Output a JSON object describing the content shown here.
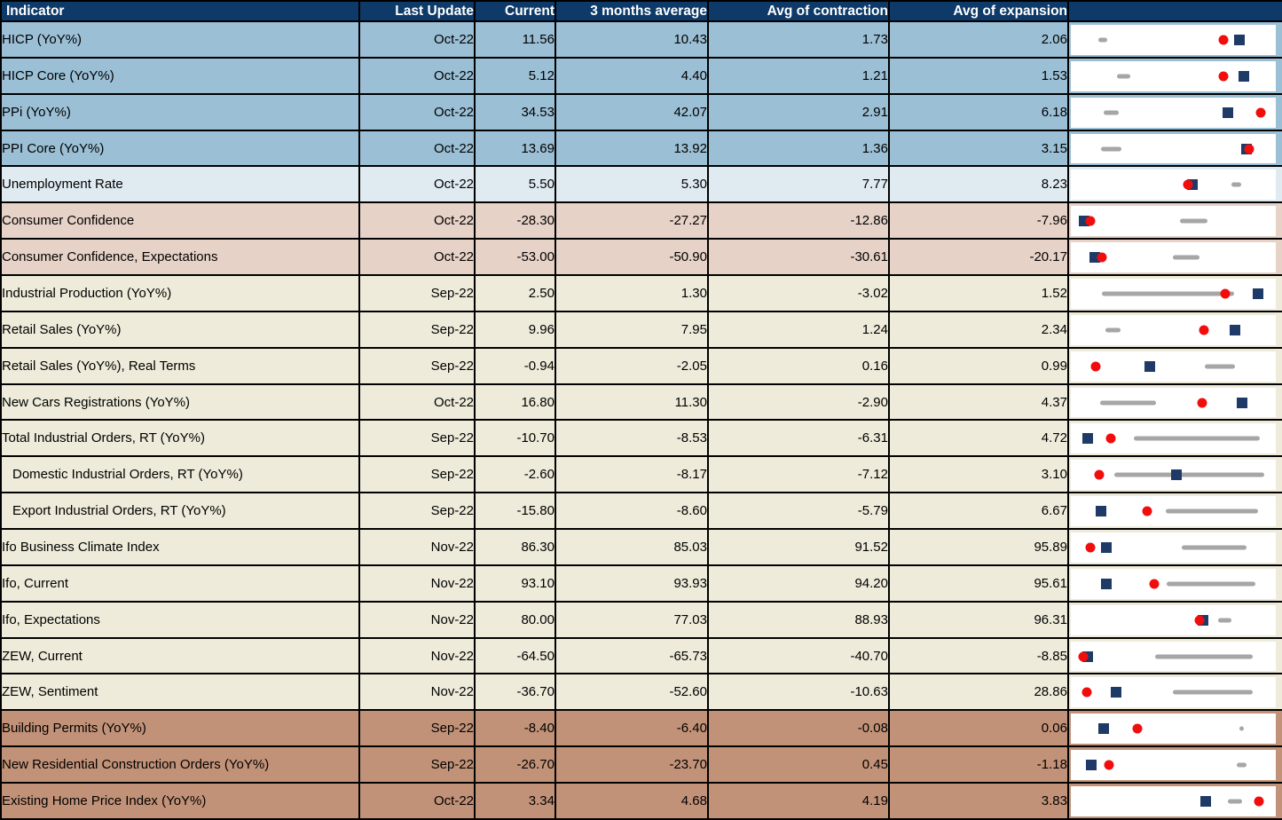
{
  "table": {
    "columns": [
      {
        "key": "indicator",
        "label": "Indicator"
      },
      {
        "key": "last_update",
        "label": "Last Update"
      },
      {
        "key": "current",
        "label": "Current"
      },
      {
        "key": "avg_3m",
        "label": "3 months average"
      },
      {
        "key": "avg_contraction",
        "label": "Avg of contraction"
      },
      {
        "key": "avg_expansion",
        "label": "Avg of expansion"
      },
      {
        "key": "chart",
        "label": ""
      }
    ]
  },
  "colors": {
    "header_bg": "#0D3A68",
    "header_text": "#FFFFFF",
    "grid_line": "#000000",
    "plot_bg": "#FFFFFF",
    "current_dot": "#F20D0D",
    "avg3m_square": "#1E3A66",
    "range_line": "#A6A6A6",
    "row_groups": {
      "inflation": "#9BBFD5",
      "labor": "#E0EAF1",
      "confidence": "#E6D2C7",
      "activity": "#EEEBDA",
      "housing": "#C29278"
    }
  },
  "chart_data": {
    "type": "table",
    "title": "Economic indicators vs contraction/expansion averages",
    "marker_semantics": {
      "current_dot": "red circle marker per row",
      "avg3m_square": "navy square marker per row",
      "range_line": "gray rounded segment per row"
    },
    "rows": [
      {
        "indicator": "HICP (YoY%)",
        "group": "inflation",
        "indent": false,
        "last_update": "Oct-22",
        "current": "11.56",
        "avg_3m": "10.43",
        "avg_contraction": "1.73",
        "avg_expansion": "2.06",
        "chart": {
          "range_line_pct": [
            13.4,
            17.7
          ],
          "avg3m_square_pct": 82.2,
          "current_dot_pct": 74.5
        }
      },
      {
        "indicator": "HICP Core (YoY%)",
        "group": "inflation",
        "indent": false,
        "last_update": "Oct-22",
        "current": "5.12",
        "avg_3m": "4.40",
        "avg_contraction": "1.21",
        "avg_expansion": "1.53",
        "chart": {
          "range_line_pct": [
            22.5,
            29.0
          ],
          "avg3m_square_pct": 84.4,
          "current_dot_pct": 74.5
        }
      },
      {
        "indicator": "PPi (YoY%)",
        "group": "inflation",
        "indent": false,
        "last_update": "Oct-22",
        "current": "34.53",
        "avg_3m": "42.07",
        "avg_contraction": "2.91",
        "avg_expansion": "6.18",
        "chart": {
          "range_line_pct": [
            16.0,
            23.4
          ],
          "avg3m_square_pct": 76.6,
          "current_dot_pct": 92.6
        }
      },
      {
        "indicator": "PPI Core (YoY%)",
        "group": "inflation",
        "indent": false,
        "last_update": "Oct-22",
        "current": "13.69",
        "avg_3m": "13.92",
        "avg_contraction": "1.36",
        "avg_expansion": "3.15",
        "chart": {
          "range_line_pct": [
            14.7,
            24.7
          ],
          "avg3m_square_pct": 85.7,
          "current_dot_pct": 87.0
        }
      },
      {
        "indicator": "Unemployment Rate",
        "group": "labor",
        "indent": false,
        "last_update": "Oct-22",
        "current": "5.50",
        "avg_3m": "5.30",
        "avg_contraction": "7.77",
        "avg_expansion": "8.23",
        "chart": {
          "range_line_pct": [
            78.4,
            83.1
          ],
          "avg3m_square_pct": 59.5,
          "current_dot_pct": 57.1
        }
      },
      {
        "indicator": "Consumer Confidence",
        "group": "confidence",
        "indent": false,
        "last_update": "Oct-22",
        "current": "-28.30",
        "avg_3m": "-27.27",
        "avg_contraction": "-12.86",
        "avg_expansion": "-7.96",
        "chart": {
          "range_line_pct": [
            53.2,
            66.7
          ],
          "avg3m_square_pct": 6.5,
          "current_dot_pct": 9.5
        }
      },
      {
        "indicator": "Consumer Confidence, Expectations",
        "group": "confidence",
        "indent": false,
        "last_update": "Oct-22",
        "current": "-53.00",
        "avg_3m": "-50.90",
        "avg_contraction": "-30.61",
        "avg_expansion": "-20.17",
        "chart": {
          "range_line_pct": [
            49.8,
            62.8
          ],
          "avg3m_square_pct": 11.7,
          "current_dot_pct": 15.2
        }
      },
      {
        "indicator": "Industrial Production (YoY%)",
        "group": "activity",
        "indent": false,
        "last_update": "Sep-22",
        "current": "2.50",
        "avg_3m": "1.30",
        "avg_contraction": "-3.02",
        "avg_expansion": "1.52",
        "chart": {
          "range_line_pct": [
            15.2,
            79.7
          ],
          "avg3m_square_pct": 91.3,
          "current_dot_pct": 75.3
        }
      },
      {
        "indicator": "Retail Sales (YoY%)",
        "group": "activity",
        "indent": false,
        "last_update": "Sep-22",
        "current": "9.96",
        "avg_3m": "7.95",
        "avg_contraction": "1.24",
        "avg_expansion": "2.34",
        "chart": {
          "range_line_pct": [
            16.9,
            24.2
          ],
          "avg3m_square_pct": 80.1,
          "current_dot_pct": 64.9
        }
      },
      {
        "indicator": "Retail Sales (YoY%), Real Terms",
        "group": "activity",
        "indent": false,
        "last_update": "Sep-22",
        "current": "-0.94",
        "avg_3m": "-2.05",
        "avg_contraction": "0.16",
        "avg_expansion": "0.99",
        "chart": {
          "range_line_pct": [
            65.4,
            80.1
          ],
          "avg3m_square_pct": 38.5,
          "current_dot_pct": 12.1
        }
      },
      {
        "indicator": "New Cars Registrations (YoY%)",
        "group": "activity",
        "indent": false,
        "last_update": "Oct-22",
        "current": "16.80",
        "avg_3m": "11.30",
        "avg_contraction": "-2.90",
        "avg_expansion": "4.37",
        "chart": {
          "range_line_pct": [
            14.3,
            41.6
          ],
          "avg3m_square_pct": 83.5,
          "current_dot_pct": 64.1
        }
      },
      {
        "indicator": "Total Industrial Orders, RT (YoY%)",
        "group": "activity",
        "indent": false,
        "last_update": "Sep-22",
        "current": "-10.70",
        "avg_3m": "-8.53",
        "avg_contraction": "-6.31",
        "avg_expansion": "4.72",
        "chart": {
          "range_line_pct": [
            30.7,
            92.2
          ],
          "avg3m_square_pct": 8.2,
          "current_dot_pct": 19.5
        }
      },
      {
        "indicator": "Domestic Industrial Orders, RT (YoY%)",
        "group": "activity",
        "indent": true,
        "last_update": "Sep-22",
        "current": "-2.60",
        "avg_3m": "-8.17",
        "avg_contraction": "-7.12",
        "avg_expansion": "3.10",
        "chart": {
          "range_line_pct": [
            21.2,
            94.4
          ],
          "avg3m_square_pct": 51.5,
          "current_dot_pct": 13.9
        }
      },
      {
        "indicator": "Export Industrial Orders, RT (YoY%)",
        "group": "activity",
        "indent": true,
        "last_update": "Sep-22",
        "current": "-15.80",
        "avg_3m": "-8.60",
        "avg_contraction": "-5.79",
        "avg_expansion": "6.67",
        "chart": {
          "range_line_pct": [
            46.3,
            91.3
          ],
          "avg3m_square_pct": 14.7,
          "current_dot_pct": 37.2
        }
      },
      {
        "indicator": "Ifo Business Climate Index",
        "group": "activity",
        "indent": false,
        "last_update": "Nov-22",
        "current": "86.30",
        "avg_3m": "85.03",
        "avg_contraction": "91.52",
        "avg_expansion": "95.89",
        "chart": {
          "range_line_pct": [
            54.1,
            85.7
          ],
          "avg3m_square_pct": 17.3,
          "current_dot_pct": 9.5
        }
      },
      {
        "indicator": "Ifo, Current",
        "group": "activity",
        "indent": false,
        "last_update": "Nov-22",
        "current": "93.10",
        "avg_3m": "93.93",
        "avg_contraction": "94.20",
        "avg_expansion": "95.61",
        "chart": {
          "range_line_pct": [
            46.8,
            90.0
          ],
          "avg3m_square_pct": 17.3,
          "current_dot_pct": 40.7
        }
      },
      {
        "indicator": "Ifo, Expectations",
        "group": "activity",
        "indent": false,
        "last_update": "Nov-22",
        "current": "80.00",
        "avg_3m": "77.03",
        "avg_contraction": "88.93",
        "avg_expansion": "96.31",
        "chart": {
          "range_line_pct": [
            71.9,
            78.4
          ],
          "avg3m_square_pct": 64.5,
          "current_dot_pct": 62.8
        }
      },
      {
        "indicator": "ZEW, Current",
        "group": "activity",
        "indent": false,
        "last_update": "Nov-22",
        "current": "-64.50",
        "avg_3m": "-65.73",
        "avg_contraction": "-40.70",
        "avg_expansion": "-8.85",
        "chart": {
          "range_line_pct": [
            41.1,
            88.7
          ],
          "avg3m_square_pct": 8.2,
          "current_dot_pct": 6.1
        }
      },
      {
        "indicator": "ZEW, Sentiment",
        "group": "activity",
        "indent": false,
        "last_update": "Nov-22",
        "current": "-36.70",
        "avg_3m": "-52.60",
        "avg_contraction": "-10.63",
        "avg_expansion": "28.86",
        "chart": {
          "range_line_pct": [
            49.8,
            88.7
          ],
          "avg3m_square_pct": 22.1,
          "current_dot_pct": 7.8
        }
      },
      {
        "indicator": "Building Permits (YoY%)",
        "group": "housing",
        "indent": false,
        "last_update": "Sep-22",
        "current": "-8.40",
        "avg_3m": "-6.40",
        "avg_contraction": "-0.08",
        "avg_expansion": "0.06",
        "chart": {
          "range_line_pct": [
            82.3,
            84.4
          ],
          "avg3m_square_pct": 16.0,
          "current_dot_pct": 32.5
        }
      },
      {
        "indicator": "New Residential Construction Orders (YoY%)",
        "group": "housing",
        "indent": false,
        "last_update": "Sep-22",
        "current": "-26.70",
        "avg_3m": "-23.70",
        "avg_contraction": "0.45",
        "avg_expansion": "-1.18",
        "chart": {
          "range_line_pct": [
            80.9,
            85.7
          ],
          "avg3m_square_pct": 10.0,
          "current_dot_pct": 18.6
        }
      },
      {
        "indicator": "Existing Home Price Index (YoY%)",
        "group": "housing",
        "indent": false,
        "last_update": "Oct-22",
        "current": "3.34",
        "avg_3m": "4.68",
        "avg_contraction": "4.19",
        "avg_expansion": "3.83",
        "chart": {
          "range_line_pct": [
            76.6,
            83.5
          ],
          "avg3m_square_pct": 65.8,
          "current_dot_pct": 91.8
        }
      }
    ]
  }
}
